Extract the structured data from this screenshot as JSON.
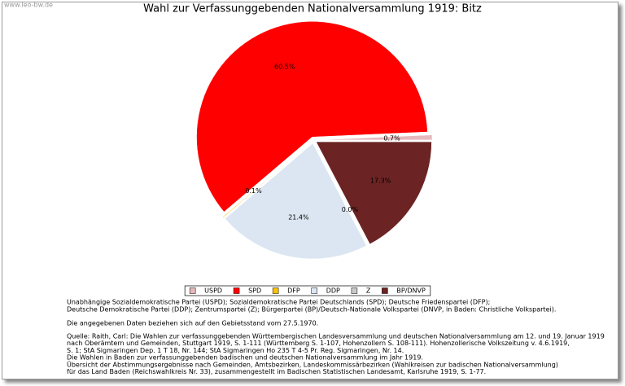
{
  "watermark": "www.leo-bw.de",
  "chart_data": {
    "type": "pie",
    "title": "Wahl zur Verfassunggebenden Nationalversammlung 1919: Bitz",
    "categories": [
      "USPD",
      "SPD",
      "DFP",
      "DDP",
      "Z",
      "BP/DNVP"
    ],
    "values": [
      0.7,
      60.5,
      0.1,
      21.4,
      0.0,
      17.3
    ],
    "value_labels": [
      "0.7%",
      "60.5%",
      "0.1%",
      "21.4%",
      "0.0%",
      "17.3%"
    ],
    "colors": [
      "#e6b8bc",
      "#ff0000",
      "#ffc000",
      "#dce6f2",
      "#c8c8c8",
      "#6b2323"
    ],
    "legend": "bottom"
  },
  "notes": [
    [
      "Unabhängige Sozialdemokratische Partei (USPD); Sozialdemokratische Partei Deutschlands (SPD); Deutsche Friedenspartei (DFP);",
      "Deutsche Demokratische Partei (DDP); Zentrumspartei (Z); Bürgerpartei (BP)/Deutsch-Nationale Volkspartei (DNVP, in Baden: Christliche Volkspartei)."
    ],
    [
      "Die angegebenen Daten beziehen sich auf den Gebietsstand vom 27.5.1970."
    ],
    [
      "Quelle: Raith, Carl: Die Wahlen zur verfassunggebenden Württembergischen Landesversammlung und deutschen Nationalversammlung am 12. und 19. Januar 1919",
      "nach Oberämtern und Gemeinden, Stuttgart 1919, S. 1-111 (Württemberg S. 1-107, Hohenzollern S. 108-111). Hohenzollerische Volkszeitung v. 4.6.1919,",
      "S. 1; StA Sigmaringen Dep. 1 T 18, Nr. 144; StA Sigmaringen Ho 235 T 4-5 Pr. Reg. Sigmaringen, Nr. 14.",
      "Die Wahlen in Baden zur verfassunggebenden badischen und deutschen Nationalversammlung im Jahr 1919.",
      "Übersicht der Abstimmungsergebnisse nach Gemeinden, Amtsbezirken, Landeskommissärbezirken (Wahlkreisen zur badischen Nationalversammlung)",
      "für das Land Baden (Reichswahlkreis Nr. 33), zusammengestellt im Badischen Statistischen Landesamt, Karlsruhe 1919, S. 1-77."
    ]
  ]
}
